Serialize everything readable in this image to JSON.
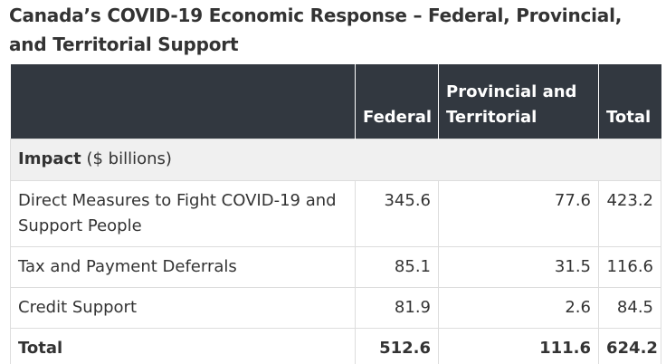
{
  "title": "Canada’s COVID-19 Economic Response – Federal, Provincial, and Territorial Support",
  "table": {
    "headers": [
      "",
      "Federal",
      "Provincial and Territorial",
      "Total"
    ],
    "section": {
      "label_bold": "Impact",
      "label_rest": " ($ billions)"
    },
    "rows": [
      {
        "label": "Direct Measures to Fight COVID-19 and Support People",
        "federal": "345.6",
        "provincial": "77.6",
        "total": "423.2"
      },
      {
        "label": "Tax and Payment Deferrals",
        "federal": "85.1",
        "provincial": "31.5",
        "total": "116.6"
      },
      {
        "label": "Credit Support",
        "federal": "81.9",
        "provincial": "2.6",
        "total": "84.5"
      }
    ],
    "total_row": {
      "label": "Total",
      "federal": "512.6",
      "provincial": "111.6",
      "total": "624.2"
    }
  },
  "colors": {
    "header_bg": "#323840",
    "section_bg": "#f0f0f0",
    "text": "#333333"
  }
}
